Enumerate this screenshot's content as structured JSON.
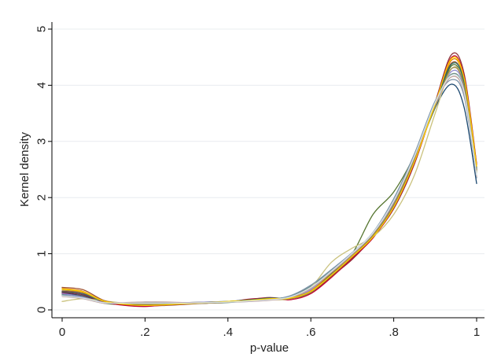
{
  "chart_data": {
    "type": "line",
    "title": "",
    "xlabel": "p-value",
    "ylabel": "Kernel density",
    "xlim": [
      0,
      1
    ],
    "ylim": [
      0,
      5
    ],
    "x_ticks": [
      0,
      0.2,
      0.4,
      0.6,
      0.8,
      1
    ],
    "x_tick_labels": [
      "0",
      ".2",
      ".4",
      ".6",
      ".8",
      "1"
    ],
    "y_ticks": [
      0,
      1,
      2,
      3,
      4,
      5
    ],
    "y_tick_labels": [
      "0",
      "1",
      "2",
      "3",
      "4",
      "5"
    ],
    "grid": true,
    "legend": "none",
    "x": [
      0,
      0.05,
      0.1,
      0.15,
      0.2,
      0.25,
      0.3,
      0.35,
      0.4,
      0.45,
      0.5,
      0.55,
      0.6,
      0.65,
      0.7,
      0.75,
      0.8,
      0.85,
      0.9,
      0.94,
      0.97,
      1.0
    ],
    "series": [
      {
        "color": "#1a476f",
        "values": [
          0.3,
          0.25,
          0.14,
          0.12,
          0.1,
          0.11,
          0.12,
          0.13,
          0.14,
          0.17,
          0.2,
          0.22,
          0.4,
          0.65,
          0.95,
          1.3,
          1.9,
          2.7,
          3.6,
          4.02,
          3.6,
          2.25
        ]
      },
      {
        "color": "#90353b",
        "values": [
          0.33,
          0.3,
          0.15,
          0.09,
          0.07,
          0.08,
          0.1,
          0.12,
          0.14,
          0.18,
          0.22,
          0.2,
          0.3,
          0.6,
          0.9,
          1.3,
          1.8,
          2.6,
          3.7,
          4.55,
          4.2,
          2.6
        ]
      },
      {
        "color": "#55752f",
        "values": [
          0.28,
          0.24,
          0.12,
          0.1,
          0.12,
          0.13,
          0.13,
          0.14,
          0.15,
          0.16,
          0.19,
          0.23,
          0.38,
          0.62,
          1.0,
          1.7,
          2.1,
          2.75,
          3.6,
          4.35,
          4.0,
          2.5
        ]
      },
      {
        "color": "#e37e00",
        "values": [
          0.38,
          0.33,
          0.16,
          0.11,
          0.09,
          0.1,
          0.12,
          0.13,
          0.15,
          0.17,
          0.19,
          0.21,
          0.34,
          0.66,
          0.98,
          1.32,
          1.85,
          2.65,
          3.65,
          4.45,
          4.1,
          2.55
        ]
      },
      {
        "color": "#6e8e84",
        "values": [
          0.26,
          0.22,
          0.13,
          0.12,
          0.13,
          0.12,
          0.12,
          0.12,
          0.13,
          0.16,
          0.19,
          0.24,
          0.42,
          0.7,
          1.0,
          1.35,
          1.95,
          2.75,
          3.7,
          4.2,
          3.9,
          2.4
        ]
      },
      {
        "color": "#c10534",
        "values": [
          0.31,
          0.27,
          0.14,
          0.08,
          0.06,
          0.09,
          0.11,
          0.13,
          0.14,
          0.19,
          0.21,
          0.18,
          0.29,
          0.58,
          0.92,
          1.28,
          1.82,
          2.62,
          3.68,
          4.5,
          4.15,
          2.58
        ]
      },
      {
        "color": "#938dd2",
        "values": [
          0.29,
          0.23,
          0.13,
          0.11,
          0.11,
          0.12,
          0.13,
          0.14,
          0.15,
          0.16,
          0.18,
          0.21,
          0.36,
          0.68,
          0.99,
          1.34,
          1.88,
          2.68,
          3.62,
          4.25,
          3.95,
          2.45
        ]
      },
      {
        "color": "#cac27e",
        "values": [
          0.15,
          0.2,
          0.16,
          0.12,
          0.1,
          0.11,
          0.12,
          0.13,
          0.14,
          0.16,
          0.18,
          0.2,
          0.4,
          0.85,
          1.1,
          1.3,
          1.7,
          2.4,
          3.5,
          4.3,
          4.0,
          2.45
        ]
      },
      {
        "color": "#a0522d",
        "values": [
          0.4,
          0.36,
          0.17,
          0.1,
          0.08,
          0.09,
          0.11,
          0.12,
          0.14,
          0.17,
          0.2,
          0.22,
          0.33,
          0.6,
          0.94,
          1.3,
          1.84,
          2.66,
          3.66,
          4.4,
          4.05,
          2.5
        ]
      },
      {
        "color": "#7b92a8",
        "values": [
          0.27,
          0.21,
          0.12,
          0.12,
          0.14,
          0.13,
          0.12,
          0.13,
          0.14,
          0.15,
          0.18,
          0.25,
          0.44,
          0.72,
          1.02,
          1.38,
          1.98,
          2.78,
          3.72,
          4.1,
          3.8,
          2.35
        ]
      },
      {
        "color": "#2d6d66",
        "values": [
          0.32,
          0.28,
          0.15,
          0.1,
          0.09,
          0.1,
          0.11,
          0.13,
          0.15,
          0.18,
          0.21,
          0.21,
          0.32,
          0.64,
          0.96,
          1.31,
          1.86,
          2.67,
          3.64,
          4.38,
          4.05,
          2.52
        ]
      },
      {
        "color": "#9c8847",
        "values": [
          0.35,
          0.31,
          0.15,
          0.11,
          0.1,
          0.1,
          0.11,
          0.12,
          0.14,
          0.16,
          0.19,
          0.2,
          0.31,
          0.63,
          0.97,
          1.33,
          1.87,
          2.69,
          3.63,
          4.3,
          3.98,
          2.48
        ]
      },
      {
        "color": "#bfa19c",
        "values": [
          0.24,
          0.2,
          0.12,
          0.13,
          0.14,
          0.14,
          0.13,
          0.13,
          0.14,
          0.15,
          0.17,
          0.22,
          0.38,
          0.67,
          0.99,
          1.36,
          1.92,
          2.72,
          3.66,
          4.15,
          3.85,
          2.38
        ]
      },
      {
        "color": "#ffd200",
        "values": [
          0.37,
          0.32,
          0.16,
          0.1,
          0.08,
          0.09,
          0.11,
          0.13,
          0.15,
          0.17,
          0.2,
          0.21,
          0.33,
          0.62,
          0.95,
          1.3,
          1.83,
          2.64,
          3.67,
          4.48,
          4.12,
          2.56
        ]
      },
      {
        "color": "#d9e6eb",
        "values": [
          0.25,
          0.21,
          0.13,
          0.12,
          0.12,
          0.12,
          0.12,
          0.13,
          0.14,
          0.16,
          0.18,
          0.23,
          0.4,
          0.69,
          1.01,
          1.37,
          1.94,
          2.74,
          3.69,
          4.18,
          3.88,
          2.4
        ]
      }
    ]
  }
}
